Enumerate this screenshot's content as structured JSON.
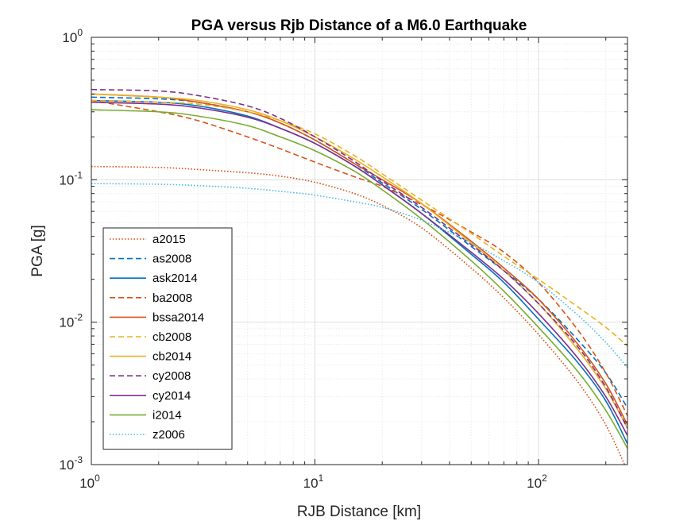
{
  "chart_data": {
    "type": "line",
    "title": "PGA versus Rjb Distance of a M6.0 Earthquake",
    "xlabel": "RJB Distance [km]",
    "ylabel": "PGA [g]",
    "xscale": "log",
    "yscale": "log",
    "xlim": [
      1,
      250
    ],
    "ylim": [
      0.001,
      1
    ],
    "grid": true,
    "minor_grid": true,
    "legend_position": "bottom-left",
    "x_ticks": [
      {
        "value": 1,
        "base": "10",
        "exp": "0"
      },
      {
        "value": 10,
        "base": "10",
        "exp": "1"
      },
      {
        "value": 100,
        "base": "10",
        "exp": "2"
      }
    ],
    "y_ticks": [
      {
        "value": 0.001,
        "base": "10",
        "exp": "-3"
      },
      {
        "value": 0.01,
        "base": "10",
        "exp": "-2"
      },
      {
        "value": 0.1,
        "base": "10",
        "exp": "-1"
      },
      {
        "value": 1,
        "base": "10",
        "exp": "0"
      }
    ],
    "series": [
      {
        "name": "a2015",
        "color": "#D95319",
        "style": "dotted",
        "x": [
          1,
          2,
          3,
          5,
          7,
          10,
          15,
          20,
          30,
          50,
          70,
          100,
          150,
          200,
          250
        ],
        "y": [
          0.124,
          0.122,
          0.118,
          0.112,
          0.106,
          0.096,
          0.08,
          0.066,
          0.046,
          0.024,
          0.0148,
          0.0082,
          0.0038,
          0.0019,
          0.0009
        ]
      },
      {
        "name": "as2008",
        "color": "#0072BD",
        "style": "dashed",
        "x": [
          1,
          2,
          3,
          5,
          7,
          10,
          15,
          20,
          30,
          50,
          70,
          100,
          150,
          200,
          250
        ],
        "y": [
          0.38,
          0.37,
          0.35,
          0.3,
          0.25,
          0.19,
          0.13,
          0.095,
          0.062,
          0.034,
          0.023,
          0.0145,
          0.0075,
          0.0044,
          0.0025
        ]
      },
      {
        "name": "ask2014",
        "color": "#0072BD",
        "style": "solid",
        "x": [
          1,
          2,
          3,
          5,
          7,
          10,
          15,
          20,
          30,
          50,
          70,
          100,
          150,
          200,
          250
        ],
        "y": [
          0.36,
          0.35,
          0.33,
          0.28,
          0.23,
          0.18,
          0.125,
          0.092,
          0.058,
          0.03,
          0.019,
          0.0105,
          0.0052,
          0.0028,
          0.0014
        ]
      },
      {
        "name": "ba2008",
        "color": "#D95319",
        "style": "dashed",
        "x": [
          1,
          2,
          3,
          5,
          7,
          10,
          15,
          20,
          30,
          50,
          70,
          100,
          150,
          200,
          250
        ],
        "y": [
          0.36,
          0.3,
          0.26,
          0.2,
          0.165,
          0.133,
          0.105,
          0.09,
          0.067,
          0.043,
          0.031,
          0.019,
          0.0088,
          0.0044,
          0.0022
        ]
      },
      {
        "name": "bssa2014",
        "color": "#D95319",
        "style": "solid",
        "x": [
          1,
          2,
          3,
          5,
          7,
          10,
          15,
          20,
          30,
          50,
          70,
          100,
          150,
          200,
          250
        ],
        "y": [
          0.4,
          0.38,
          0.35,
          0.3,
          0.25,
          0.19,
          0.13,
          0.1,
          0.068,
          0.037,
          0.024,
          0.0145,
          0.007,
          0.0037,
          0.0019
        ]
      },
      {
        "name": "cb2008",
        "color": "#EDB120",
        "style": "dashed",
        "x": [
          1,
          2,
          3,
          5,
          7,
          10,
          15,
          20,
          30,
          50,
          70,
          100,
          150,
          200,
          250
        ],
        "y": [
          0.36,
          0.35,
          0.34,
          0.3,
          0.26,
          0.21,
          0.148,
          0.11,
          0.072,
          0.042,
          0.029,
          0.02,
          0.0128,
          0.0092,
          0.0068
        ]
      },
      {
        "name": "cb2014",
        "color": "#EDB120",
        "style": "solid",
        "x": [
          1,
          2,
          3,
          5,
          7,
          10,
          15,
          20,
          30,
          50,
          70,
          100,
          150,
          200,
          250
        ],
        "y": [
          0.4,
          0.38,
          0.36,
          0.31,
          0.26,
          0.2,
          0.14,
          0.105,
          0.068,
          0.036,
          0.023,
          0.0135,
          0.0064,
          0.0034,
          0.0018
        ]
      },
      {
        "name": "cy2008",
        "color": "#7E2F8E",
        "style": "dashed",
        "x": [
          1,
          2,
          3,
          5,
          7,
          10,
          15,
          20,
          30,
          50,
          70,
          100,
          150,
          200,
          250
        ],
        "y": [
          0.43,
          0.42,
          0.39,
          0.33,
          0.27,
          0.2,
          0.135,
          0.098,
          0.064,
          0.035,
          0.023,
          0.0135,
          0.0067,
          0.0035,
          0.0018
        ]
      },
      {
        "name": "cy2014",
        "color": "#7E2F8E",
        "style": "solid",
        "x": [
          1,
          2,
          3,
          5,
          7,
          10,
          15,
          20,
          30,
          50,
          70,
          100,
          150,
          200,
          250
        ],
        "y": [
          0.35,
          0.34,
          0.32,
          0.275,
          0.23,
          0.18,
          0.125,
          0.092,
          0.058,
          0.031,
          0.02,
          0.0115,
          0.0056,
          0.003,
          0.0016
        ]
      },
      {
        "name": "i2014",
        "color": "#77AC30",
        "style": "solid",
        "x": [
          1,
          2,
          3,
          5,
          7,
          10,
          15,
          20,
          30,
          50,
          70,
          100,
          150,
          200,
          250
        ],
        "y": [
          0.31,
          0.3,
          0.28,
          0.24,
          0.2,
          0.16,
          0.115,
          0.085,
          0.053,
          0.027,
          0.0165,
          0.0092,
          0.0045,
          0.0024,
          0.0013
        ]
      },
      {
        "name": "z2006",
        "color": "#4DBEEE",
        "style": "dotted",
        "x": [
          1,
          2,
          3,
          5,
          7,
          10,
          15,
          20,
          30,
          50,
          70,
          100,
          150,
          200,
          250
        ],
        "y": [
          0.094,
          0.093,
          0.091,
          0.087,
          0.083,
          0.078,
          0.07,
          0.064,
          0.052,
          0.036,
          0.027,
          0.019,
          0.0112,
          0.0072,
          0.0048
        ]
      }
    ]
  }
}
